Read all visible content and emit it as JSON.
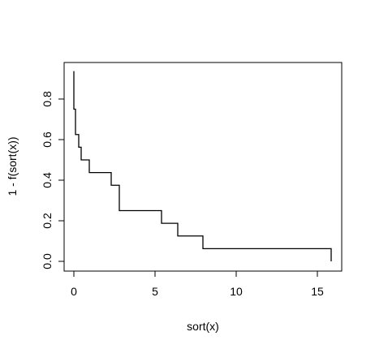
{
  "chart_data": {
    "type": "step",
    "x_label": "sort(x)",
    "y_label": "1 - f(sort(x))",
    "x": [
      0,
      0,
      0,
      0,
      0.1,
      0.1,
      0.3,
      0.45,
      0.95,
      2.3,
      2.8,
      2.8,
      5.4,
      6.4,
      7.95,
      15.85
    ],
    "values": [
      0.9375,
      0.875,
      0.8125,
      0.75,
      0.6875,
      0.625,
      0.5625,
      0.5,
      0.4375,
      0.375,
      0.3125,
      0.25,
      0.1875,
      0.125,
      0.0625,
      0
    ],
    "color": "#000000",
    "xlim": [
      -0.6,
      16.5
    ],
    "ylim": [
      -0.048,
      0.98
    ],
    "xticks": [
      0,
      5,
      10,
      15
    ],
    "yticks": [
      {
        "value": 0,
        "label": "0.0"
      },
      0.2,
      0.4,
      0.6,
      0.8
    ]
  }
}
